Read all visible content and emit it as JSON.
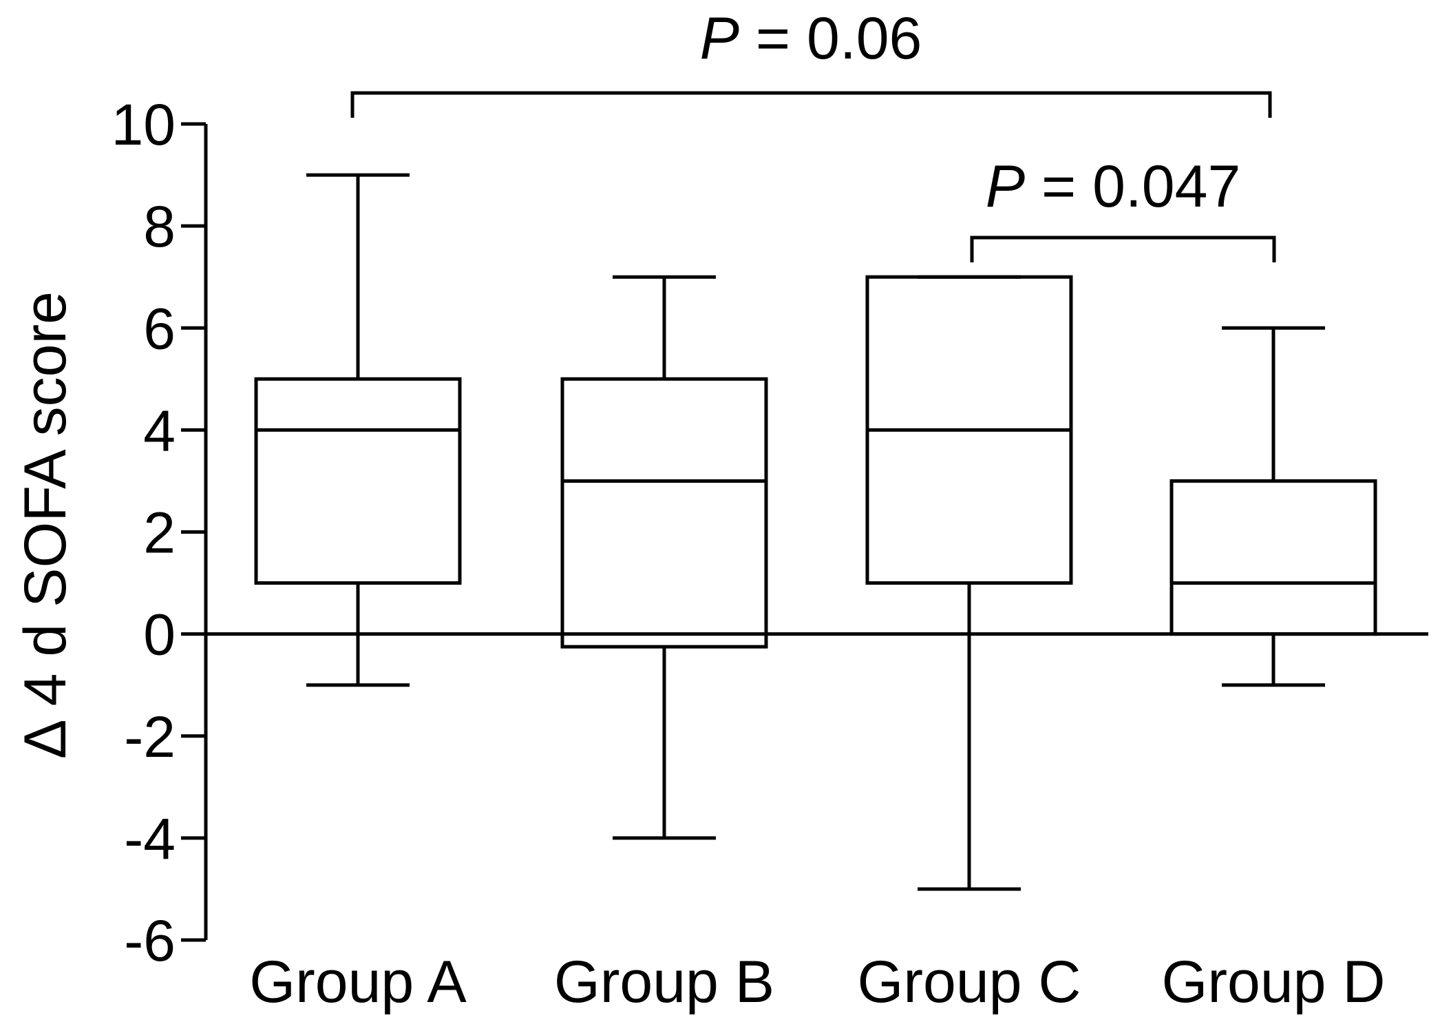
{
  "chart_data": {
    "type": "box",
    "title": "",
    "xlabel": "",
    "ylabel": "Δ 4 d SOFA score",
    "ylim": [
      -6,
      10
    ],
    "yticks": [
      -6,
      -4,
      -2,
      0,
      2,
      4,
      6,
      8,
      10
    ],
    "ytick_labels": [
      "-6",
      "-4",
      "-2",
      "0",
      "2",
      "4",
      "6",
      "8",
      "10"
    ],
    "zero_line": true,
    "grid": false,
    "categories": [
      "Group A",
      "Group B",
      "Group C",
      "Group D"
    ],
    "boxes": [
      {
        "category": "Group A",
        "min": -1,
        "q1": 1,
        "median": 4,
        "q3": 5,
        "max": 9
      },
      {
        "category": "Group B",
        "min": -4,
        "q1": -0.25,
        "median": 3,
        "q3": 5,
        "max": 7
      },
      {
        "category": "Group C",
        "min": -5,
        "q1": 1,
        "median": 4,
        "q3": 7,
        "max": 7
      },
      {
        "category": "Group D",
        "min": -1,
        "q1": 0,
        "median": 1,
        "q3": 3,
        "max": 6
      }
    ],
    "annotations": [
      {
        "from": "Group A",
        "to": "Group D",
        "label_prefix": "P",
        "label_rest": " = 0.06"
      },
      {
        "from": "Group C",
        "to": "Group D",
        "label_prefix": "P",
        "label_rest": " = 0.047"
      }
    ]
  }
}
